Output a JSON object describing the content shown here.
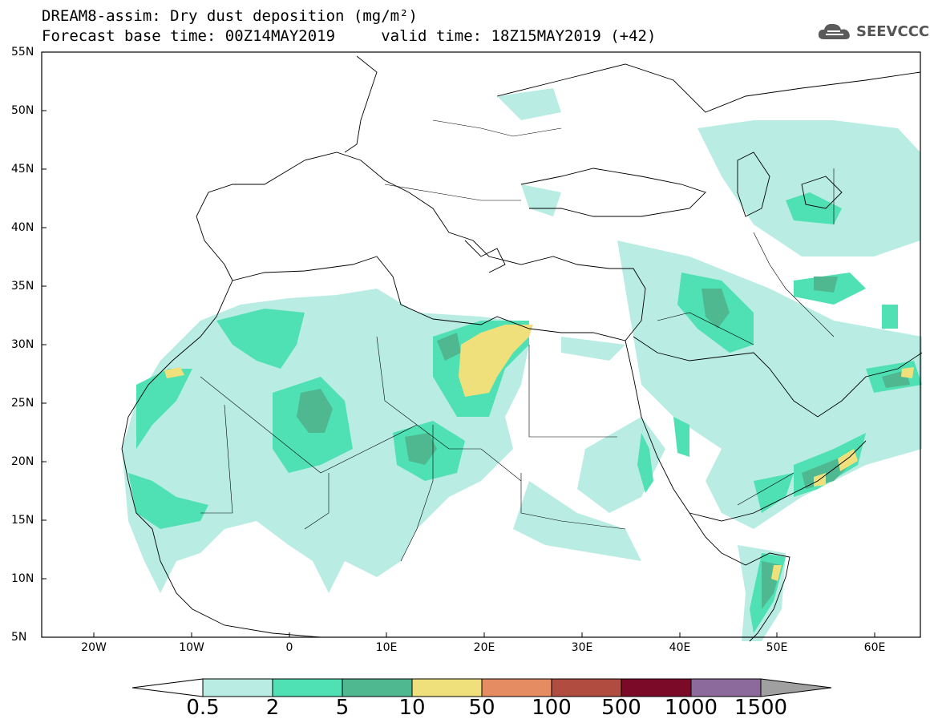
{
  "title_line1": "DREAM8-assim: Dry dust deposition (mg/m²)",
  "title_line2": "Forecast base time: 00Z14MAY2019     valid time: 18Z15MAY2019 (+42)",
  "logo": {
    "icon": "cloud-icon",
    "text": "SEEVCCC"
  },
  "lat_labels": [
    "55N",
    "50N",
    "45N",
    "40N",
    "35N",
    "30N",
    "25N",
    "20N",
    "15N",
    "10N",
    "5N"
  ],
  "lon_labels": [
    "20W",
    "10W",
    "0",
    "10E",
    "20E",
    "30E",
    "40E",
    "50E",
    "60E"
  ],
  "colorbar": {
    "labels": [
      "0.5",
      "2",
      "5",
      "10",
      "50",
      "100",
      "500",
      "1000",
      "1500"
    ],
    "colors": [
      "#b9ede4",
      "#4fe0b4",
      "#4fb890",
      "#f0e07c",
      "#e68c62",
      "#b04c40",
      "#7a0a28",
      "#8c6a9c"
    ],
    "under_color": "#ffffff",
    "over_color": "#a0a0a0"
  },
  "map": {
    "projection": "lat-lon",
    "lon_range": [
      -25,
      65
    ],
    "lat_range": [
      5,
      55
    ],
    "ocean_color": "#ffffff",
    "coast_color": "#000000"
  }
}
